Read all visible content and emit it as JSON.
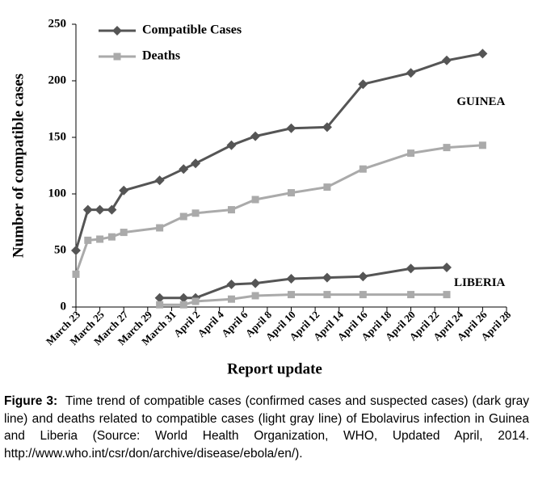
{
  "chart_data": {
    "type": "line",
    "y_label": "Number of compatible cases",
    "x_label": "Report update",
    "xlim": [
      0,
      36
    ],
    "xticks": [
      {
        "value": 0,
        "label": "March 23"
      },
      {
        "value": 2,
        "label": "March 25"
      },
      {
        "value": 4,
        "label": "March 27"
      },
      {
        "value": 6,
        "label": "March 29"
      },
      {
        "value": 8,
        "label": "March 31"
      },
      {
        "value": 10,
        "label": "April 2"
      },
      {
        "value": 12,
        "label": "April 4"
      },
      {
        "value": 14,
        "label": "April 6"
      },
      {
        "value": 16,
        "label": "April 8"
      },
      {
        "value": 18,
        "label": "April 10"
      },
      {
        "value": 20,
        "label": "April 12"
      },
      {
        "value": 22,
        "label": "April 14"
      },
      {
        "value": 24,
        "label": "April 16"
      },
      {
        "value": 26,
        "label": "April 18"
      },
      {
        "value": 28,
        "label": "April 20"
      },
      {
        "value": 30,
        "label": "April 22"
      },
      {
        "value": 32,
        "label": "April 24"
      },
      {
        "value": 34,
        "label": "April 26"
      },
      {
        "value": 36,
        "label": "April 28"
      }
    ],
    "ylim": [
      0,
      250
    ],
    "yticks": [
      0,
      50,
      100,
      150,
      200,
      250
    ],
    "series": [
      {
        "name": "Compatible Cases",
        "color": "#555555",
        "marker": "diamond",
        "x": [
          0,
          1,
          2,
          3,
          4,
          7,
          9,
          10,
          13,
          15,
          18,
          21,
          24,
          28,
          31,
          34
        ],
        "values": [
          50,
          86,
          86,
          86,
          103,
          112,
          122,
          127,
          143,
          151,
          158,
          159,
          197,
          207,
          218,
          224
        ]
      },
      {
        "name": "Deaths",
        "color": "#aaaaaa",
        "marker": "square",
        "x": [
          0,
          1,
          2,
          3,
          4,
          7,
          9,
          10,
          13,
          15,
          18,
          21,
          24,
          28,
          31,
          34
        ],
        "values": [
          29,
          59,
          60,
          62,
          66,
          70,
          80,
          83,
          86,
          95,
          101,
          106,
          122,
          136,
          141,
          143
        ]
      },
      {
        "color": "#555555",
        "marker": "diamond",
        "x": [
          7,
          9,
          10,
          13,
          15,
          18,
          21,
          24,
          28,
          31
        ],
        "values": [
          8,
          8,
          8,
          20,
          21,
          25,
          26,
          27,
          34,
          35
        ]
      },
      {
        "color": "#aaaaaa",
        "marker": "square",
        "x": [
          7,
          9,
          10,
          13,
          15,
          18,
          21,
          24,
          28,
          31
        ],
        "values": [
          2,
          2,
          5,
          7,
          10,
          11,
          11,
          11,
          11,
          11
        ]
      }
    ],
    "annotations": [
      {
        "text": "GUINEA",
        "x": 34,
        "y": 181
      },
      {
        "text": "LIBERIA",
        "x": 34,
        "y": 21
      }
    ]
  },
  "caption": {
    "label": "Figure 3:",
    "text": "Time trend of compatible cases (confirmed cases and suspected cases) (dark gray line) and deaths related to compatible cases (light gray line) of Ebolavirus infection in Guinea and Liberia (Source: World Health Organization, WHO, Updated April, 2014. http://www.who.int/csr/don/archive/disease/ebola/en/)."
  }
}
